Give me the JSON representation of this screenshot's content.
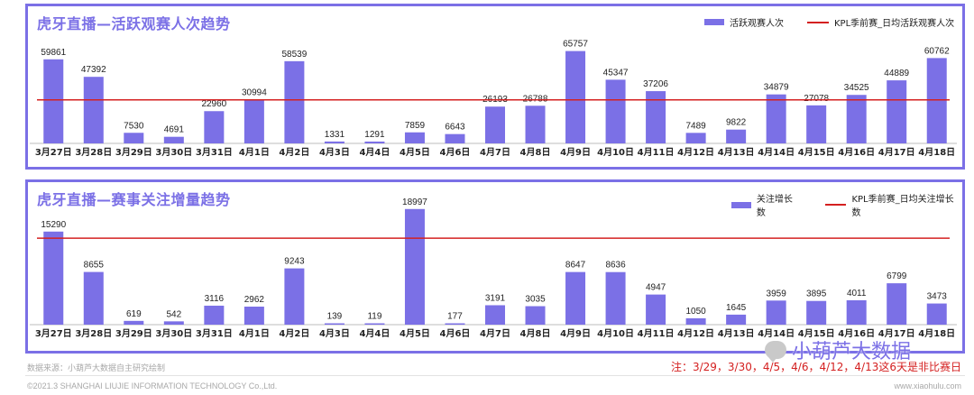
{
  "colors": {
    "accent": "#7b70e6",
    "avg_line": "#d42020"
  },
  "chart_data": [
    {
      "type": "bar",
      "title": "虎牙直播—活跃观赛人次趋势",
      "categories": [
        "3月27日",
        "3月28日",
        "3月29日",
        "3月30日",
        "3月31日",
        "4月1日",
        "4月2日",
        "4月3日",
        "4月4日",
        "4月5日",
        "4月6日",
        "4月7日",
        "4月8日",
        "4月9日",
        "4月10日",
        "4月11日",
        "4月12日",
        "4月13日",
        "4月14日",
        "4月15日",
        "4月16日",
        "4月17日",
        "4月18日"
      ],
      "series": [
        {
          "name": "活跃观赛人次",
          "values": [
            59861,
            47392,
            7530,
            4691,
            22960,
            30994,
            58539,
            1331,
            1291,
            7859,
            6643,
            26193,
            26788,
            65757,
            45347,
            37206,
            7489,
            9822,
            34879,
            27078,
            34525,
            44889,
            60762
          ]
        }
      ],
      "reference_line": {
        "name": "KPL季前赛_日均活跃观赛人次",
        "value": 31000
      },
      "ylim": [
        0,
        70000
      ],
      "legend": "top-right",
      "grid": false
    },
    {
      "type": "bar",
      "title": "虎牙直播—赛事关注增量趋势",
      "categories": [
        "3月27日",
        "3月28日",
        "3月29日",
        "3月30日",
        "3月31日",
        "4月1日",
        "4月2日",
        "4月3日",
        "4月4日",
        "4月5日",
        "4月6日",
        "4月7日",
        "4月8日",
        "4月9日",
        "4月10日",
        "4月11日",
        "4月12日",
        "4月13日",
        "4月14日",
        "4月15日",
        "4月16日",
        "4月17日",
        "4月18日"
      ],
      "series": [
        {
          "name": "关注增长数",
          "values": [
            15290,
            8655,
            619,
            542,
            3116,
            2962,
            9243,
            139,
            119,
            18997,
            177,
            3191,
            3035,
            8647,
            8636,
            4947,
            1050,
            1645,
            3959,
            3895,
            4011,
            6799,
            3473
          ]
        }
      ],
      "reference_line": {
        "name": "KPL季前赛_日均关注增长数",
        "value": 14200
      },
      "ylim": [
        0,
        20000
      ],
      "legend": "top-right",
      "grid": false
    }
  ],
  "footer": {
    "source": "数据来源：小葫芦大数据自主研究绘制",
    "note": "注：3/29，3/30，4/5，4/6，4/12，4/13这6天是非比赛日",
    "copyright": "©2021.3 SHANGHAI LIUJIE INFORMATION TECHNOLOGY Co.,Ltd.",
    "url": "www.xiaohulu.com",
    "brand": "小葫芦大数据"
  }
}
